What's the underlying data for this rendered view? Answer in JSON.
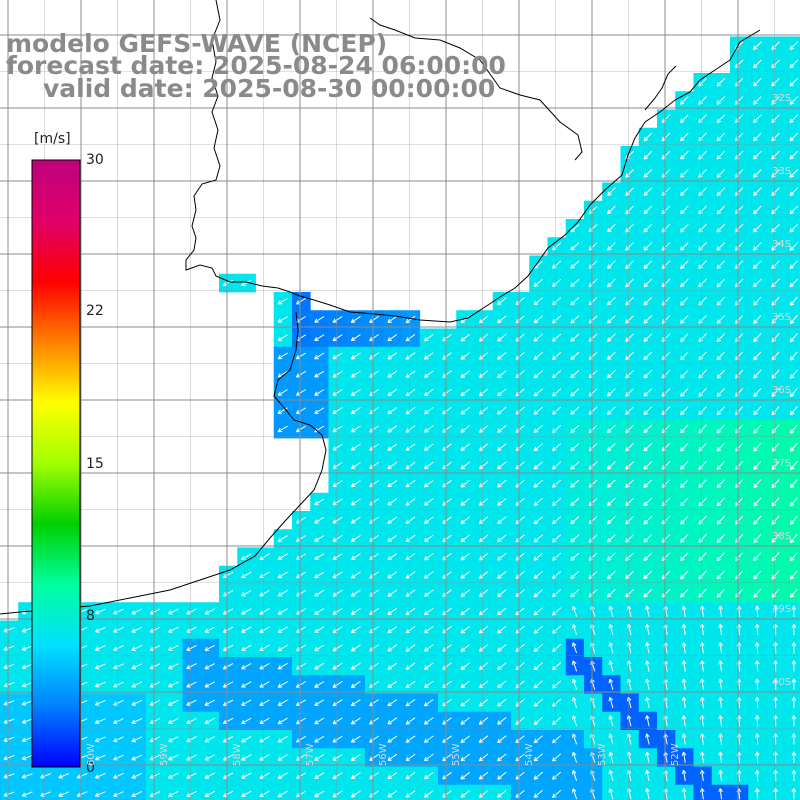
{
  "titles": {
    "model": "modelo GEFS-WAVE (NCEP)",
    "forecast": "forecast date: 2025-08-24 06:00:00",
    "valid": "valid date: 2025-08-30 00:00:00"
  },
  "colorbar": {
    "unit": "[m/s]",
    "ticks": [
      "30",
      "22",
      "15",
      "8",
      "0"
    ],
    "min": 0,
    "max": 30,
    "colors": [
      "#0000ff",
      "#0080ff",
      "#00e0ff",
      "#00ffa0",
      "#00d000",
      "#a0ff00",
      "#ffff00",
      "#ff8000",
      "#ff0000",
      "#e0006a",
      "#c0007c"
    ]
  },
  "map": {
    "field": "wind speed",
    "lat_labels": [
      "32S",
      "33S",
      "34S",
      "35S",
      "36S",
      "37S",
      "38S",
      "39S",
      "40S"
    ],
    "lon_labels": [
      "60W",
      "59W",
      "58W",
      "57W",
      "56W",
      "55W",
      "54W",
      "53W",
      "52W"
    ],
    "arrow_color": "#ffffff",
    "grid_color": "#8c8c8c",
    "coast_color": "#000000"
  }
}
